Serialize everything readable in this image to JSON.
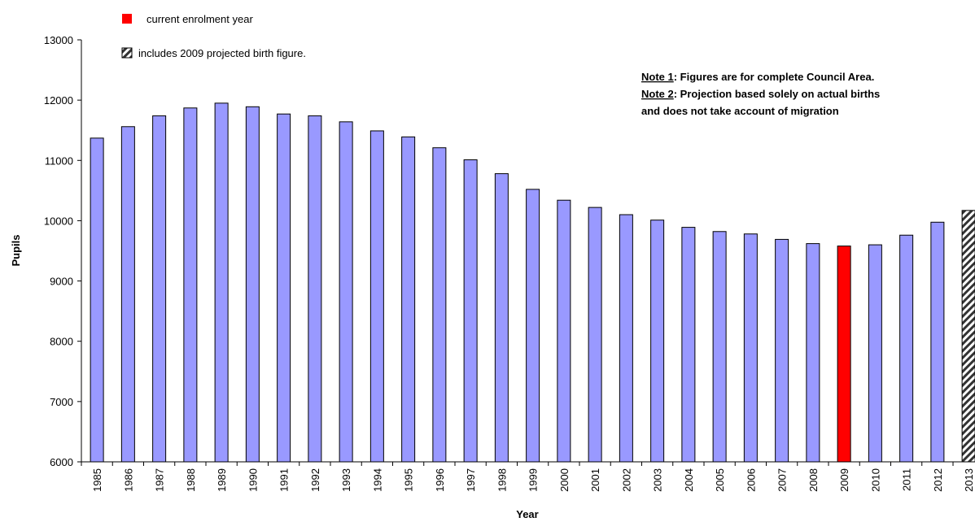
{
  "chart_data": {
    "type": "bar",
    "x_label": "Year",
    "y_label": "Pupils",
    "categories": [
      "1985",
      "1986",
      "1987",
      "1988",
      "1989",
      "1990",
      "1991",
      "1992",
      "1993",
      "1994",
      "1995",
      "1996",
      "1997",
      "1998",
      "1999",
      "2000",
      "2001",
      "2002",
      "2003",
      "2004",
      "2005",
      "2006",
      "2007",
      "2008",
      "2009",
      "2010",
      "2011",
      "2012",
      "2013"
    ],
    "values": [
      11370,
      11560,
      11740,
      11870,
      11950,
      11890,
      11770,
      11740,
      11640,
      11490,
      11390,
      11210,
      11010,
      10780,
      10520,
      10340,
      10220,
      10100,
      10010,
      9890,
      9820,
      9780,
      9690,
      9620,
      9580,
      9600,
      9760,
      9975,
      10170
    ],
    "colors": [
      "#9999ff",
      "#9999ff",
      "#9999ff",
      "#9999ff",
      "#9999ff",
      "#9999ff",
      "#9999ff",
      "#9999ff",
      "#9999ff",
      "#9999ff",
      "#9999ff",
      "#9999ff",
      "#9999ff",
      "#9999ff",
      "#9999ff",
      "#9999ff",
      "#9999ff",
      "#9999ff",
      "#9999ff",
      "#9999ff",
      "#9999ff",
      "#9999ff",
      "#9999ff",
      "#9999ff",
      "#ff0000",
      "#9999ff",
      "#9999ff",
      "#9999ff",
      "hatch"
    ],
    "ylim": [
      6000,
      13000
    ],
    "yticks": [
      6000,
      7000,
      8000,
      9000,
      10000,
      11000,
      12000,
      13000
    ],
    "grid": false,
    "legend": [
      {
        "label": "current enrolment year",
        "color": "#ff0000"
      },
      {
        "label": "includes 2009 projected birth figure.",
        "color": "hatch"
      }
    ],
    "notes": [
      {
        "label": "Note 1",
        "text": ": Figures are for complete Council Area."
      },
      {
        "label": "Note 2",
        "text": ": Projection based solely on actual births"
      },
      {
        "text": "and does not take account of migration"
      }
    ]
  }
}
